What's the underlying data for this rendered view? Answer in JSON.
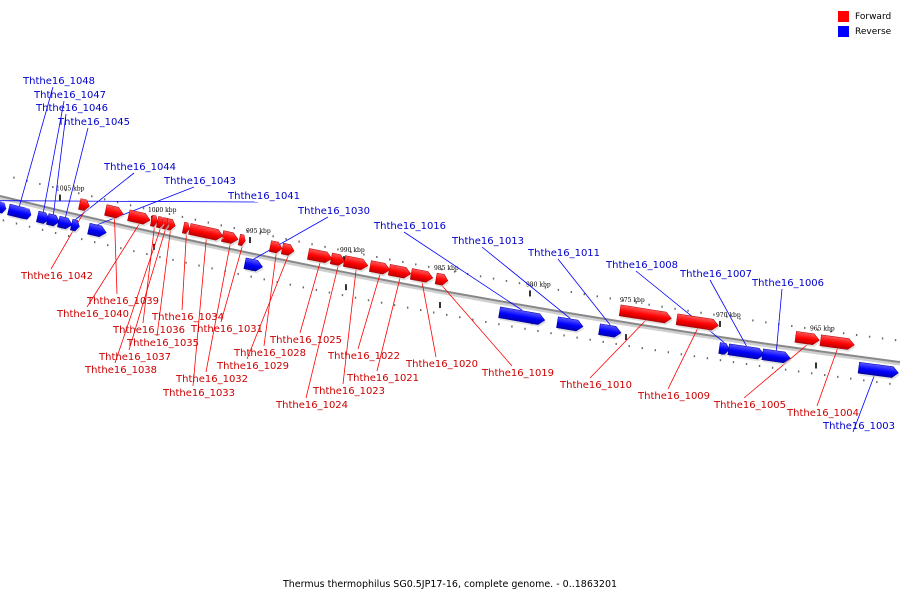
{
  "caption": "Thermus thermophilus SG0.5JP17-16, complete genome. - 0..1863201",
  "legend": [
    {
      "label": "Forward",
      "color": "#ff0000"
    },
    {
      "label": "Reverse",
      "color": "#0000ff"
    }
  ],
  "colors": {
    "forward": "#ff0000",
    "reverse": "#0000ff",
    "backbone": "#888888"
  },
  "ticks": [
    "1005 kbp",
    "1000 kbp",
    "995 kbp",
    "990 kbp",
    "985 kbp",
    "980 kbp",
    "975 kbp",
    "970 kbp",
    "965 kbp"
  ],
  "genes": [
    {
      "id": "Ththe16_1048",
      "strand": "reverse"
    },
    {
      "id": "Ththe16_1047",
      "strand": "reverse"
    },
    {
      "id": "Ththe16_1046",
      "strand": "reverse"
    },
    {
      "id": "Ththe16_1045",
      "strand": "reverse"
    },
    {
      "id": "Ththe16_1044",
      "strand": "reverse"
    },
    {
      "id": "Ththe16_1043",
      "strand": "reverse"
    },
    {
      "id": "Ththe16_1041",
      "strand": "reverse"
    },
    {
      "id": "Ththe16_1030",
      "strand": "reverse"
    },
    {
      "id": "Ththe16_1016",
      "strand": "reverse"
    },
    {
      "id": "Ththe16_1013",
      "strand": "reverse"
    },
    {
      "id": "Ththe16_1011",
      "strand": "reverse"
    },
    {
      "id": "Ththe16_1008",
      "strand": "reverse"
    },
    {
      "id": "Ththe16_1007",
      "strand": "reverse"
    },
    {
      "id": "Ththe16_1006",
      "strand": "reverse"
    },
    {
      "id": "Ththe16_1003",
      "strand": "reverse"
    },
    {
      "id": "Ththe16_1042",
      "strand": "forward"
    },
    {
      "id": "Ththe16_1039",
      "strand": "forward"
    },
    {
      "id": "Ththe16_1040",
      "strand": "forward"
    },
    {
      "id": "Ththe16_1036",
      "strand": "forward"
    },
    {
      "id": "Ththe16_1035",
      "strand": "forward"
    },
    {
      "id": "Ththe16_1037",
      "strand": "forward"
    },
    {
      "id": "Ththe16_1038",
      "strand": "forward"
    },
    {
      "id": "Ththe16_1034",
      "strand": "forward"
    },
    {
      "id": "Ththe16_1031",
      "strand": "forward"
    },
    {
      "id": "Ththe16_1032",
      "strand": "forward"
    },
    {
      "id": "Ththe16_1033",
      "strand": "forward"
    },
    {
      "id": "Ththe16_1028",
      "strand": "forward"
    },
    {
      "id": "Ththe16_1029",
      "strand": "forward"
    },
    {
      "id": "Ththe16_1025",
      "strand": "forward"
    },
    {
      "id": "Ththe16_1024",
      "strand": "forward"
    },
    {
      "id": "Ththe16_1023",
      "strand": "forward"
    },
    {
      "id": "Ththe16_1022",
      "strand": "forward"
    },
    {
      "id": "Ththe16_1021",
      "strand": "forward"
    },
    {
      "id": "Ththe16_1020",
      "strand": "forward"
    },
    {
      "id": "Ththe16_1019",
      "strand": "forward"
    },
    {
      "id": "Ththe16_1010",
      "strand": "forward"
    },
    {
      "id": "Ththe16_1009",
      "strand": "forward"
    },
    {
      "id": "Ththe16_1005",
      "strand": "forward"
    },
    {
      "id": "Ththe16_1004",
      "strand": "forward"
    }
  ]
}
